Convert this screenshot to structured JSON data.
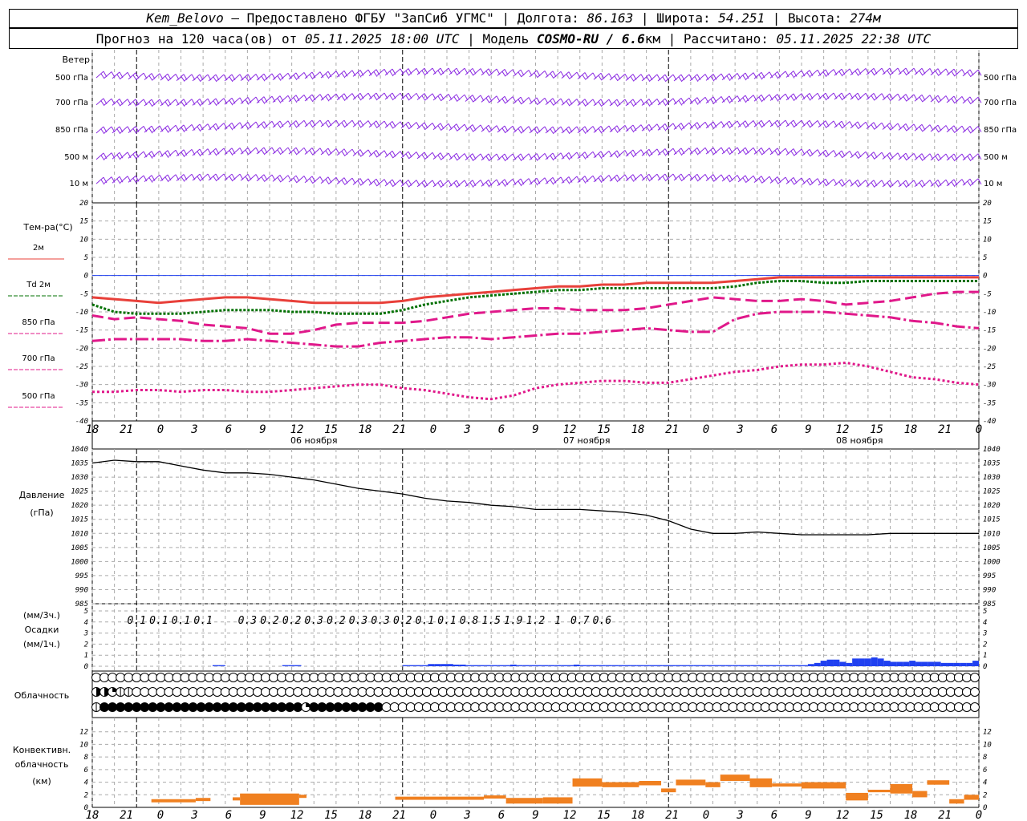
{
  "header": {
    "station": "Kem_Belovo",
    "provider": "– Предоставлено ФГБУ \"ЗапСиб УГМС\"",
    "lon_label": "Долгота:",
    "lon": "86.163",
    "lat_label": "Широта:",
    "lat": "54.251",
    "alt_label": "Высота:",
    "alt": "274м",
    "forecast_label": "Прогноз на 120 часа(ов) от",
    "init": "05.11.2025 18:00 UTC",
    "model_label": "Модель",
    "model": "COSMO-RU / 6.6",
    "model_unit": "км",
    "calc_label": "Рассчитано:",
    "calc": "05.11.2025 22:38 UTC"
  },
  "chart_data": {
    "type": "meteogram",
    "x_hour_labels": [
      "18",
      "21",
      "0",
      "3",
      "6",
      "9",
      "12",
      "15",
      "18",
      "21",
      "0",
      "3",
      "6",
      "9",
      "12",
      "15",
      "18",
      "21",
      "0",
      "3",
      "6",
      "9",
      "12",
      "15",
      "18",
      "21",
      "0"
    ],
    "day_labels": [
      "06 ноября",
      "07 ноября",
      "08 ноября"
    ],
    "wind": {
      "title": "Ветер",
      "levels": [
        "500 гПа",
        "700 гПа",
        "850 гПа",
        "500 м",
        "10  м"
      ],
      "color": "#8b2be2"
    },
    "temperature": {
      "title": "Тем-ра(°C)",
      "ylim": [
        -40,
        20
      ],
      "ticks": [
        20,
        15,
        10,
        5,
        0,
        -5,
        -10,
        -15,
        -20,
        -25,
        -30,
        -35,
        -40
      ],
      "series": [
        {
          "name": "2м",
          "color": "#e8403a",
          "dash": "",
          "width": 3,
          "values": [
            -6,
            -6.5,
            -7,
            -7.5,
            -7,
            -6.5,
            -6,
            -6,
            -6.5,
            -7,
            -7.5,
            -7.5,
            -7.5,
            -7.5,
            -7,
            -6,
            -5.5,
            -5,
            -4.5,
            -4,
            -3.5,
            -3,
            -3,
            -2.5,
            -2.5,
            -2,
            -2,
            -2,
            -2,
            -1.5,
            -1,
            -0.5,
            -0.5,
            -0.5,
            -0.5,
            -0.5,
            -0.5,
            -0.5,
            -0.5,
            -0.5,
            -0.5
          ]
        },
        {
          "name": "Td  2м",
          "color": "#007000",
          "dash": "3,2",
          "width": 3,
          "values": [
            -8,
            -10,
            -10.5,
            -10.5,
            -10.5,
            -10,
            -9.5,
            -9.5,
            -9.5,
            -10,
            -10,
            -10.5,
            -10.5,
            -10.5,
            -9.5,
            -8,
            -7,
            -6,
            -5.5,
            -5,
            -4.5,
            -4,
            -4,
            -3.5,
            -3.5,
            -3.5,
            -3.5,
            -3.5,
            -3.5,
            -3,
            -2,
            -1.5,
            -1.5,
            -2,
            -2,
            -1.5,
            -1.5,
            -1.5,
            -1.5,
            -1.5,
            -1.5
          ]
        },
        {
          "name": "850 гПа",
          "color": "#e0188a",
          "dash": "14,6",
          "width": 3,
          "values": [
            -11,
            -12,
            -11.5,
            -12,
            -12.5,
            -13.5,
            -14,
            -14.5,
            -16,
            -16,
            -15,
            -13.5,
            -13,
            -13,
            -13,
            -12.5,
            -11.5,
            -10.5,
            -10,
            -9.5,
            -9,
            -9,
            -9.5,
            -9.5,
            -9.5,
            -9,
            -8,
            -7,
            -6,
            -6.5,
            -7,
            -7,
            -6.5,
            -7,
            -8,
            -7.5,
            -7,
            -6,
            -5,
            -4.5,
            -4.5
          ]
        },
        {
          "name": "700 гПа",
          "color": "#e0188a",
          "dash": "16,4,3,4",
          "width": 3,
          "values": [
            -18,
            -17.5,
            -17.5,
            -17.5,
            -17.5,
            -18,
            -18,
            -17.5,
            -18,
            -18.5,
            -19,
            -19.5,
            -19.5,
            -18.5,
            -18,
            -17.5,
            -17,
            -17,
            -17.5,
            -17,
            -16.5,
            -16,
            -16,
            -15.5,
            -15,
            -14.5,
            -15,
            -15.5,
            -15.5,
            -12,
            -10.5,
            -10,
            -10,
            -10,
            -10.5,
            -11,
            -11.5,
            -12.5,
            -13,
            -14,
            -14.5
          ]
        },
        {
          "name": "500 гПа",
          "color": "#e0188a",
          "dash": "3,3",
          "width": 3,
          "values": [
            -32,
            -32,
            -31.5,
            -31.5,
            -32,
            -31.5,
            -31.5,
            -32,
            -32,
            -31.5,
            -31,
            -30.5,
            -30,
            -30,
            -31,
            -31.5,
            -32.5,
            -33.5,
            -34,
            -33,
            -31,
            -30,
            -29.5,
            -29,
            -29,
            -29.5,
            -29.5,
            -28.5,
            -27.5,
            -26.5,
            -26,
            -25,
            -24.5,
            -24.5,
            -24,
            -25,
            -26.5,
            -28,
            -28.5,
            -29.5,
            -30
          ]
        }
      ]
    },
    "pressure": {
      "title": "Давление",
      "unit": "(гПа)",
      "ylim": [
        985,
        1040
      ],
      "ticks": [
        1040,
        1035,
        1030,
        1025,
        1020,
        1015,
        1010,
        1005,
        1000,
        995,
        990,
        985
      ],
      "values": [
        1035,
        1036,
        1035.5,
        1035.5,
        1034,
        1032.5,
        1031.5,
        1031.5,
        1031,
        1030,
        1029,
        1027.5,
        1026,
        1025,
        1024,
        1022.5,
        1021.5,
        1021,
        1020,
        1019.5,
        1018.5,
        1018.5,
        1018.5,
        1018,
        1017.5,
        1016.5,
        1014.5,
        1011.5,
        1010,
        1010,
        1010.5,
        1010,
        1009.5,
        1009.5,
        1009.5,
        1009.5,
        1010,
        1010,
        1010,
        1010,
        1010
      ]
    },
    "precip": {
      "title_top": "(мм/3ч.)",
      "title": "Осадки",
      "unit": "(мм/1ч.)",
      "ylim": [
        0,
        5
      ],
      "ticks": [
        "5",
        "4",
        "3",
        "2",
        "1",
        "0"
      ],
      "labels_3h": [
        "0.1",
        "0.1",
        "0.1",
        "0.1",
        "0.3",
        "0.2",
        "0.2",
        "0.3",
        "0.2",
        "0.3",
        "0.3",
        "0.2",
        "0.1",
        "0.1",
        "0.8",
        "1.5",
        "1.9",
        "1.2",
        "1",
        "0.7",
        "0.6"
      ],
      "label_hours": [
        6,
        9,
        12,
        15,
        21,
        24,
        27,
        30,
        33,
        36,
        39,
        42,
        45,
        48,
        51,
        54,
        57,
        60,
        63,
        66,
        69
      ],
      "bars": [
        0,
        0,
        0,
        0,
        0,
        0,
        0,
        0,
        0,
        0,
        0,
        0,
        0,
        0,
        0,
        0,
        0,
        0,
        0,
        0.1,
        0.1,
        0,
        0,
        0,
        0,
        0,
        0,
        0,
        0,
        0,
        0.1,
        0.1,
        0.1,
        0,
        0,
        0,
        0,
        0,
        0,
        0,
        0,
        0,
        0,
        0,
        0,
        0,
        0,
        0,
        0,
        0.1,
        0.1,
        0.1,
        0.1,
        0.2,
        0.2,
        0.2,
        0.2,
        0.15,
        0.15,
        0.1,
        0.1,
        0.1,
        0.1,
        0.1,
        0.1,
        0.1,
        0.15,
        0.1,
        0.1,
        0.1,
        0.1,
        0.1,
        0.1,
        0.1,
        0.1,
        0.1,
        0.15,
        0.1,
        0.1,
        0.1,
        0.1,
        0.1,
        0.1,
        0.1,
        0.1,
        0.1,
        0.1,
        0.1,
        0.1,
        0.1,
        0.1,
        0.1,
        0.1,
        0.1,
        0.1,
        0.1,
        0.1,
        0.1,
        0.1,
        0.1,
        0.1,
        0.1,
        0.1,
        0.1,
        0.1,
        0.1,
        0.1,
        0.1,
        0.1,
        0.1,
        0.1,
        0.1,
        0.1,
        0.2,
        0.3,
        0.5,
        0.6,
        0.6,
        0.4,
        0.3,
        0.7,
        0.7,
        0.7,
        0.8,
        0.7,
        0.5,
        0.4,
        0.4,
        0.4,
        0.5,
        0.4,
        0.4,
        0.4,
        0.4,
        0.3,
        0.3,
        0.3,
        0.3,
        0.3,
        0.5
      ],
      "color": "#2040f0"
    },
    "clouds": {
      "title": "Облачность",
      "rows": [
        [
          0,
          0,
          0,
          0,
          0,
          0,
          0,
          0,
          0,
          0,
          0,
          0,
          0,
          0,
          0,
          0,
          0,
          0,
          0,
          0,
          0,
          0,
          0,
          0,
          0,
          0,
          0,
          0,
          0,
          0,
          0,
          0,
          0,
          0,
          0,
          0,
          0,
          0,
          0,
          0,
          0,
          0,
          0,
          0,
          0,
          0,
          0,
          0,
          0,
          0,
          0,
          0,
          0,
          0,
          0,
          0,
          0,
          0,
          0,
          0,
          0,
          0,
          0,
          0,
          0,
          0,
          0,
          0,
          0,
          0,
          0,
          0,
          0,
          0,
          0,
          0,
          0,
          0,
          0,
          0,
          0,
          0,
          0,
          0,
          0,
          0,
          0,
          0,
          0,
          0,
          0,
          0,
          0,
          0,
          0,
          0,
          0,
          0,
          0,
          0,
          0,
          0,
          0,
          0,
          0,
          0,
          0,
          0,
          0,
          0
        ],
        [
          3,
          3,
          2,
          1,
          1,
          0,
          0,
          0,
          0,
          0,
          0,
          0,
          0,
          0,
          0,
          0,
          0,
          0,
          0,
          0,
          0,
          0,
          0,
          0,
          0,
          0,
          0,
          0,
          0,
          0,
          0,
          0,
          0,
          0,
          0,
          0,
          0,
          0,
          0,
          0,
          0,
          0,
          0,
          0,
          0,
          0,
          0,
          0,
          0,
          0,
          0,
          0,
          0,
          0,
          0,
          0,
          0,
          0,
          0,
          0,
          0,
          0,
          0,
          0,
          0,
          0,
          0,
          0,
          0,
          0,
          0,
          0,
          0,
          0,
          0,
          0,
          0,
          0,
          0,
          0,
          0,
          0,
          0,
          0,
          0,
          0,
          0,
          0,
          0,
          0,
          0,
          0,
          0,
          0,
          0,
          0,
          0,
          0,
          0,
          0,
          0,
          0,
          0,
          0,
          0,
          0,
          0,
          0,
          0,
          0
        ],
        [
          1,
          4,
          4,
          4,
          4,
          4,
          4,
          4,
          4,
          4,
          4,
          4,
          4,
          4,
          4,
          4,
          4,
          4,
          4,
          4,
          4,
          4,
          4,
          4,
          4,
          4,
          2,
          4,
          4,
          4,
          4,
          4,
          4,
          4,
          4,
          4,
          0,
          0,
          0,
          0,
          0,
          0,
          0,
          0,
          0,
          0,
          0,
          0,
          0,
          0,
          0,
          0,
          0,
          0,
          0,
          0,
          0,
          0,
          0,
          0,
          0,
          0,
          0,
          0,
          0,
          0,
          0,
          0,
          0,
          0,
          0,
          0,
          0,
          0,
          0,
          0,
          0,
          0,
          0,
          0,
          0,
          0,
          0,
          0,
          0,
          0,
          0,
          0,
          0,
          0,
          0,
          0,
          0,
          0,
          0,
          0,
          0,
          0,
          0,
          0,
          0,
          0,
          0,
          0,
          0,
          0,
          0,
          0,
          0,
          0
        ]
      ]
    },
    "convective": {
      "title1": "Конвективн.",
      "title2": "облачность",
      "unit": "(км)",
      "ylim": [
        0,
        14
      ],
      "ticks": [
        "12",
        "10",
        "8",
        "6",
        "4",
        "2",
        "0"
      ],
      "color": "#f08020",
      "segments": [
        {
          "from": 8,
          "to": 14,
          "base": 0.8,
          "top": 1.3
        },
        {
          "from": 14,
          "to": 16,
          "base": 1.0,
          "top": 1.5
        },
        {
          "from": 19,
          "to": 20,
          "base": 1.1,
          "top": 1.6
        },
        {
          "from": 20,
          "to": 28,
          "base": 0.4,
          "top": 2.2
        },
        {
          "from": 28,
          "to": 29,
          "base": 1.5,
          "top": 2.0
        },
        {
          "from": 41,
          "to": 53,
          "base": 1.2,
          "top": 1.7
        },
        {
          "from": 53,
          "to": 56,
          "base": 1.4,
          "top": 1.9
        },
        {
          "from": 56,
          "to": 61,
          "base": 0.6,
          "top": 1.5
        },
        {
          "from": 61,
          "to": 65,
          "base": 0.6,
          "top": 1.6
        },
        {
          "from": 65,
          "to": 69,
          "base": 3.3,
          "top": 4.6
        },
        {
          "from": 69,
          "to": 74,
          "base": 3.2,
          "top": 4.0
        },
        {
          "from": 74,
          "to": 77,
          "base": 3.5,
          "top": 4.2
        },
        {
          "from": 77,
          "to": 79,
          "base": 2.4,
          "top": 3.0
        },
        {
          "from": 79,
          "to": 83,
          "base": 3.5,
          "top": 4.4
        },
        {
          "from": 83,
          "to": 85,
          "base": 3.2,
          "top": 4.0
        },
        {
          "from": 85,
          "to": 89,
          "base": 4.2,
          "top": 5.2
        },
        {
          "from": 89,
          "to": 92,
          "base": 3.2,
          "top": 4.6
        },
        {
          "from": 92,
          "to": 96,
          "base": 3.3,
          "top": 3.8
        },
        {
          "from": 96,
          "to": 102,
          "base": 3.0,
          "top": 4.0
        },
        {
          "from": 102,
          "to": 105,
          "base": 1.1,
          "top": 2.3
        },
        {
          "from": 105,
          "to": 108,
          "base": 2.4,
          "top": 2.8
        },
        {
          "from": 108,
          "to": 111,
          "base": 2.2,
          "top": 3.7
        },
        {
          "from": 111,
          "to": 113,
          "base": 1.6,
          "top": 2.6
        },
        {
          "from": 113,
          "to": 116,
          "base": 3.6,
          "top": 4.3
        },
        {
          "from": 116,
          "to": 118,
          "base": 0.6,
          "top": 1.3
        },
        {
          "from": 118,
          "to": 120,
          "base": 1.2,
          "top": 2.0
        }
      ]
    }
  }
}
